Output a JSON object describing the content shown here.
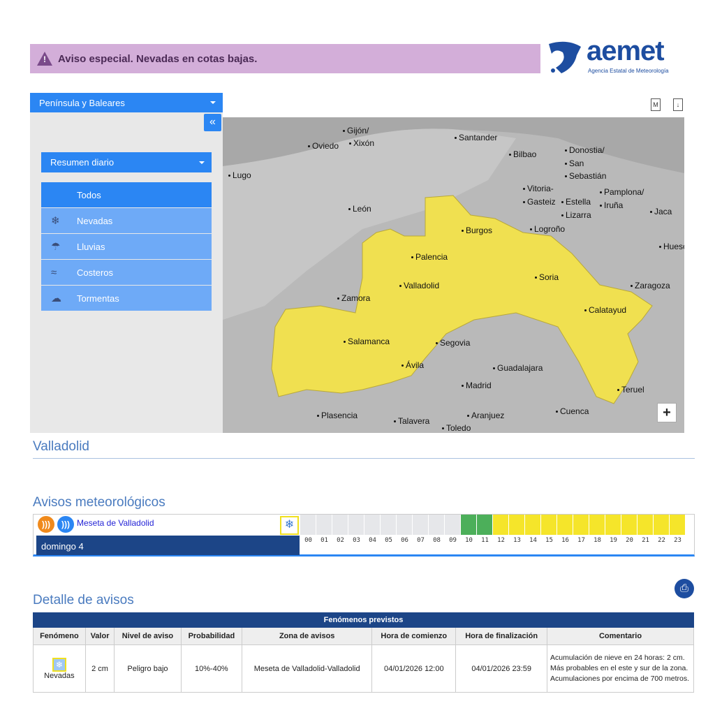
{
  "banner": {
    "icon": "warning-icon",
    "text": "Aviso especial. Nevadas en cotas bajas."
  },
  "logo": {
    "name": "aemet",
    "subtitle": "Agencia Estatal de Meteorología"
  },
  "region_select": "Península y Baleares",
  "view_select": "Resumen diario",
  "menu": [
    {
      "label": "Todos",
      "icon": ""
    },
    {
      "label": "Nevadas",
      "icon": "snowflake-icon"
    },
    {
      "label": "Lluvias",
      "icon": "rain-icon"
    },
    {
      "label": "Costeros",
      "icon": "waves-icon"
    },
    {
      "label": "Tormentas",
      "icon": "storm-icon"
    }
  ],
  "tools": {
    "m": "M",
    "download": "↓"
  },
  "map": {
    "cities": [
      "Gijón/",
      "Xixón",
      "Oviedo",
      "Santander",
      "Bilbao",
      "Donostia/",
      "San",
      "Sebastián",
      "Lugo",
      "Vitoria-",
      "Gasteiz",
      "Estella",
      "Lizarra",
      "Pamplona/",
      "Iruña",
      "Jaca",
      "León",
      "Logroño",
      "Burgos",
      "Huesca",
      "Palencia",
      "Soria",
      "Zaragoza",
      "Zamora",
      "Valladolid",
      "Calatayud",
      "Salamanca",
      "Segovia",
      "Ávila",
      "Guadalajara",
      "Madrid",
      "Teruel",
      "Plasencia",
      "Talavera",
      "Aranjuez",
      "Cuenca",
      "Toledo"
    ],
    "zoom_in": "+",
    "warning_color": "#f0e050"
  },
  "location_title": "Valladolid",
  "avisos": {
    "title": "Avisos meteorológicos",
    "zone": "Meseta de Valladolid",
    "day": "domingo 4",
    "hours": [
      "00",
      "01",
      "02",
      "03",
      "04",
      "05",
      "06",
      "07",
      "08",
      "09",
      "10",
      "11",
      "12",
      "13",
      "14",
      "15",
      "16",
      "17",
      "18",
      "19",
      "20",
      "21",
      "22",
      "23"
    ],
    "levels": [
      "none",
      "none",
      "none",
      "none",
      "none",
      "none",
      "none",
      "none",
      "none",
      "none",
      "green",
      "green",
      "yellow",
      "yellow",
      "yellow",
      "yellow",
      "yellow",
      "yellow",
      "yellow",
      "yellow",
      "yellow",
      "yellow",
      "yellow",
      "yellow"
    ],
    "colors": {
      "none": "#e6e7ea",
      "green": "#4caf5a",
      "yellow": "#f5e52a"
    }
  },
  "detalle": {
    "title": "Detalle de avisos",
    "caption": "Fenómenos previstos",
    "headers": [
      "Fenómeno",
      "Valor",
      "Nivel de aviso",
      "Probabilidad",
      "Zona de avisos",
      "Hora de comienzo",
      "Hora de finalización",
      "Comentario"
    ],
    "row": [
      "Nevadas",
      "2 cm",
      "Peligro bajo",
      "10%-40%",
      "Meseta de Valladolid-Valladolid",
      "04/01/2026 12:00",
      "04/01/2026 23:59",
      "Acumulación de nieve en 24 horas: 2 cm. Más probables en el este y sur de la zona. Acumulaciones por encima de 700 metros."
    ]
  }
}
